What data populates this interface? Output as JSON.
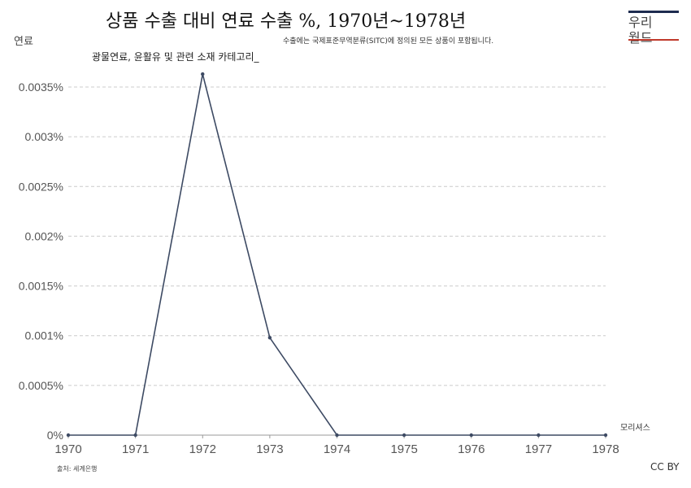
{
  "title": "상품 수출 대비 연료 수출 %, 1970년~1978년",
  "y_axis_title": "연료",
  "note": "수출에는 국제표준무역분류(SITC)에 정의된 모든 상품이 포함됩니다.",
  "subtitle": "광물연료, 윤활유 및 관련 소재 카테고리_",
  "source": "출처: 세계은행",
  "license": "CC BY",
  "logo": {
    "line1": "우리",
    "line2": "월드"
  },
  "colors": {
    "line": "#3d4a63",
    "grid": "#cccccc",
    "logo_bar": "#1d2b4f",
    "logo_strike": "#c0392b"
  },
  "chart_data": {
    "type": "line",
    "x": [
      1970,
      1971,
      1972,
      1973,
      1974,
      1975,
      1976,
      1977,
      1978
    ],
    "series": [
      {
        "name": "모리셔스",
        "values": [
          0,
          0,
          0.00363,
          0.00098,
          0,
          0,
          0,
          0,
          0
        ]
      }
    ],
    "ylim": [
      0,
      0.0035
    ],
    "y_ticks": [
      0,
      0.0005,
      0.001,
      0.0015,
      0.002,
      0.0025,
      0.003,
      0.0035
    ],
    "y_tick_labels": [
      "0%",
      "0.0005%",
      "0.001%",
      "0.0015%",
      "0.002%",
      "0.0025%",
      "0.003%",
      "0.0035%"
    ],
    "x_tick_labels": [
      "1970",
      "1971",
      "1972",
      "1973",
      "1974",
      "1975",
      "1976",
      "1977",
      "1978"
    ],
    "grid": true
  }
}
